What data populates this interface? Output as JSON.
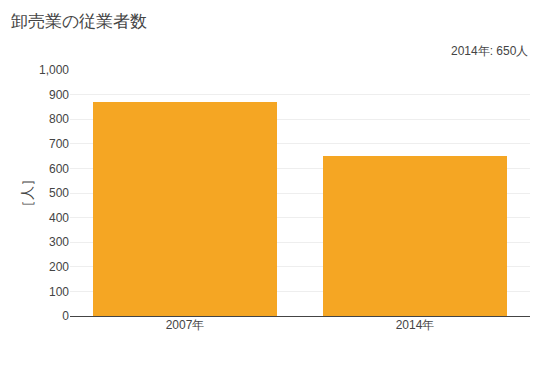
{
  "chart_data": {
    "type": "bar",
    "title": "卸売業の従業者数",
    "ylabel": "［人］",
    "categories": [
      "2007年",
      "2014年"
    ],
    "values": [
      870,
      650
    ],
    "color": "#F5A623",
    "ylim": [
      0,
      1000
    ],
    "yticks": [
      0,
      100,
      200,
      300,
      400,
      500,
      600,
      700,
      800,
      900,
      {
        "value": 1000,
        "label": "1,000"
      }
    ],
    "grid": true,
    "annotation": "2014年: 650人"
  }
}
